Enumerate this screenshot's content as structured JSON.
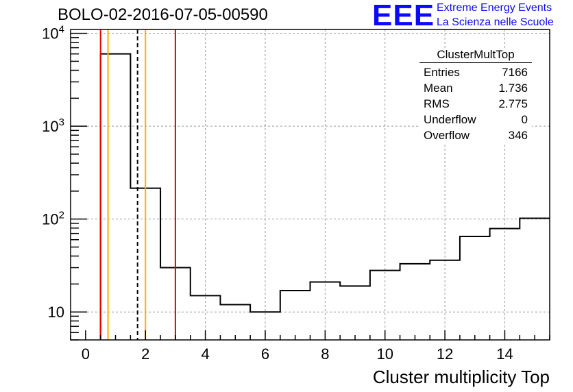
{
  "title": "BOLO-02-2016-07-05-00590",
  "logo": {
    "mark": "EEE",
    "line1": "Extreme Energy Events",
    "line2": "La Scienza nelle Scuole",
    "color": "#0a0aff"
  },
  "stats_box": {
    "title": "ClusterMultTop",
    "rows": [
      {
        "label": "Entries",
        "value": "7166"
      },
      {
        "label": "Mean",
        "value": "1.736"
      },
      {
        "label": "RMS",
        "value": "2.775"
      },
      {
        "label": "Underflow",
        "value": "0"
      },
      {
        "label": "Overflow",
        "value": "346"
      }
    ]
  },
  "chart_data": {
    "type": "bar",
    "histogram": true,
    "title": "BOLO-02-2016-07-05-00590",
    "xlabel": "Cluster multiplicity Top",
    "ylabel": "",
    "xlim": [
      -0.5,
      15.5
    ],
    "ylim": [
      5,
      11000
    ],
    "y_scale": "log",
    "grid": true,
    "bin_edges": [
      0.5,
      1.5,
      2.5,
      3.5,
      4.5,
      5.5,
      6.5,
      7.5,
      8.5,
      9.5,
      10.5,
      11.5,
      12.5,
      13.5,
      14.5,
      15.5
    ],
    "values": [
      6000,
      215,
      30,
      15,
      12,
      10,
      17,
      21,
      19,
      28,
      33,
      36,
      65,
      79,
      102
    ],
    "x_ticks": [
      0,
      2,
      4,
      6,
      8,
      10,
      12,
      14
    ],
    "y_ticks": [
      {
        "value": 10,
        "base": "10",
        "exp": ""
      },
      {
        "value": 100,
        "base": "10",
        "exp": "2"
      },
      {
        "value": 1000,
        "base": "10",
        "exp": "3"
      },
      {
        "value": 10000,
        "base": "10",
        "exp": "4"
      }
    ],
    "vertical_lines": [
      {
        "x": 0.5,
        "color": "#e00000",
        "style": "solid"
      },
      {
        "x": 0.75,
        "color": "#ffb000",
        "style": "solid"
      },
      {
        "x": 1.736,
        "color": "#000000",
        "style": "dashed"
      },
      {
        "x": 2.0,
        "color": "#ffb000",
        "style": "solid"
      },
      {
        "x": 3.0,
        "color": "#e00000",
        "style": "solid"
      }
    ],
    "line_color": "#000000"
  }
}
